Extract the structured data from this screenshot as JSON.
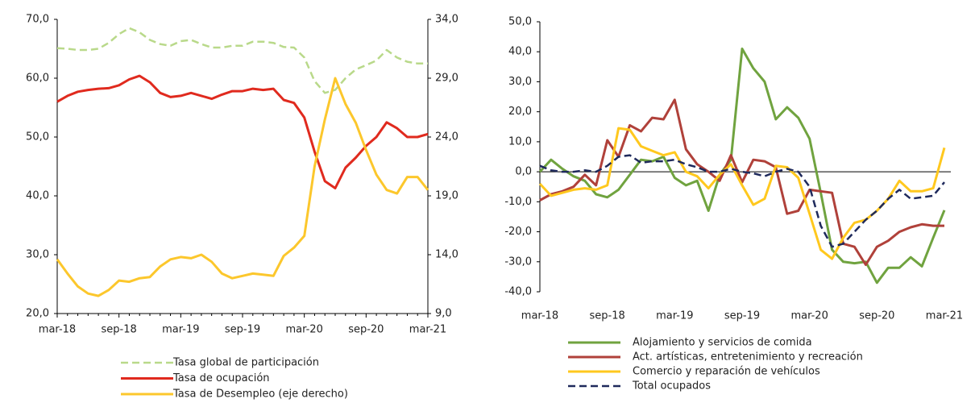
{
  "chart_data": [
    {
      "type": "line",
      "categories": [
        "mar-18",
        null,
        null,
        null,
        null,
        null,
        "sep-18",
        null,
        null,
        null,
        null,
        null,
        "mar-19",
        null,
        null,
        null,
        null,
        null,
        "sep-19",
        null,
        null,
        null,
        null,
        null,
        "mar-20",
        null,
        null,
        null,
        null,
        null,
        "sep-20",
        null,
        null,
        null,
        null,
        null,
        "mar-21"
      ],
      "ylim": [
        20,
        70
      ],
      "yticks": [
        {
          "value": 20,
          "label": "20,0"
        },
        {
          "value": 30,
          "label": "30,0"
        },
        {
          "value": 40,
          "label": "40,0"
        },
        {
          "value": 50,
          "label": "50,0"
        },
        {
          "value": 60,
          "label": "60,0"
        },
        {
          "value": 70,
          "label": "70,0"
        }
      ],
      "y2lim": [
        9,
        34
      ],
      "y2ticks": [
        {
          "value": 9,
          "label": "9,0"
        },
        {
          "value": 14,
          "label": "14,0"
        },
        {
          "value": 19,
          "label": "19,0"
        },
        {
          "value": 24,
          "label": "24,0"
        },
        {
          "value": 29,
          "label": "29,0"
        },
        {
          "value": 34,
          "label": "34,0"
        }
      ],
      "series": [
        {
          "name": "Tasa global de participación",
          "color": "#b9d98a",
          "style": "dashed",
          "values": [
            65.1,
            65.0,
            64.8,
            64.8,
            65.0,
            66.0,
            67.5,
            68.5,
            67.8,
            66.5,
            65.8,
            65.5,
            66.3,
            66.5,
            65.8,
            65.2,
            65.2,
            65.5,
            65.5,
            66.2,
            66.2,
            66.0,
            65.3,
            65.2,
            63.5,
            59.5,
            57.5,
            58.0,
            60.0,
            61.5,
            62.2,
            63.0,
            64.8,
            63.5,
            62.8,
            62.5,
            62.5
          ]
        },
        {
          "name": "Tasa de ocupación",
          "color": "#e02a1e",
          "style": "solid",
          "values": [
            56.0,
            57.0,
            57.7,
            58.0,
            58.2,
            58.3,
            58.8,
            59.8,
            60.4,
            59.3,
            57.5,
            56.8,
            57.0,
            57.5,
            57.0,
            56.5,
            57.2,
            57.8,
            57.8,
            58.2,
            58.0,
            58.2,
            56.3,
            55.8,
            53.3,
            47.5,
            42.5,
            41.3,
            44.8,
            46.5,
            48.5,
            50.0,
            52.5,
            51.5,
            50.0,
            50.0,
            50.5
          ]
        },
        {
          "name": "Tasa de Desempleo (eje derecho)",
          "color": "#fcc72c",
          "style": "solid",
          "axis": "y2",
          "values": [
            13.6,
            12.4,
            11.3,
            10.7,
            10.5,
            11.0,
            11.8,
            11.7,
            12.0,
            12.1,
            13.0,
            13.6,
            13.8,
            13.7,
            14.0,
            13.4,
            12.4,
            12.0,
            12.2,
            12.4,
            12.3,
            12.2,
            13.9,
            14.6,
            15.6,
            21.5,
            25.5,
            29.0,
            26.8,
            25.2,
            22.9,
            20.8,
            19.5,
            19.2,
            20.6,
            20.6,
            19.5
          ]
        }
      ]
    },
    {
      "type": "line",
      "categories": [
        "mar-18",
        null,
        null,
        null,
        null,
        null,
        "sep-18",
        null,
        null,
        null,
        null,
        null,
        "mar-19",
        null,
        null,
        null,
        null,
        null,
        "sep-19",
        null,
        null,
        null,
        null,
        null,
        "mar-20",
        null,
        null,
        null,
        null,
        null,
        "sep-20",
        null,
        null,
        null,
        null,
        null,
        "mar-21"
      ],
      "ylim": [
        -40,
        50
      ],
      "yticks": [
        {
          "value": -40,
          "label": "-40,0"
        },
        {
          "value": -30,
          "label": "-30,0"
        },
        {
          "value": -20,
          "label": "-20,0"
        },
        {
          "value": -10,
          "label": "-10,0"
        },
        {
          "value": 0,
          "label": "0,0"
        },
        {
          "value": 10,
          "label": "10,0"
        },
        {
          "value": 20,
          "label": "20,0"
        },
        {
          "value": 30,
          "label": "30,0"
        },
        {
          "value": 40,
          "label": "40,0"
        },
        {
          "value": 50,
          "label": "50,0"
        }
      ],
      "series": [
        {
          "name": "Alojamiento y servicios de comida",
          "color": "#70a33f",
          "style": "solid",
          "values": [
            0,
            4,
            1,
            -1.5,
            -3,
            -7.5,
            -8.5,
            -6,
            -1,
            4,
            3.5,
            5,
            -2,
            -4.5,
            -3,
            -13,
            -1,
            4,
            41,
            34.5,
            30,
            17.5,
            21.5,
            18,
            11,
            -7,
            -26,
            -30,
            -30.5,
            -30,
            -37,
            -32,
            -32,
            -28.5,
            -31.5,
            -22,
            -12.8
          ]
        },
        {
          "name": "Act. artísticas, entretenimiento y recreación",
          "color": "#b0413a",
          "style": "solid",
          "values": [
            -9.5,
            -7.5,
            -6.5,
            -5,
            -1,
            -4.5,
            10.5,
            5,
            15.5,
            13.5,
            18,
            17.5,
            24,
            7.5,
            2.5,
            0,
            -3,
            5.5,
            -3.5,
            4,
            3.5,
            1.5,
            -14,
            -13,
            -6,
            -6.5,
            -7,
            -24,
            -25,
            -31,
            -25,
            -23,
            -20,
            -18.5,
            -17.5,
            -18,
            -18
          ]
        },
        {
          "name": "Comercio y reparación de vehículos",
          "color": "#ffc81e",
          "style": "solid",
          "values": [
            -4,
            -8,
            -7,
            -6,
            -5.5,
            -6,
            -4.5,
            14.5,
            14,
            8.5,
            7,
            5.5,
            6.5,
            0,
            -1.5,
            -5.5,
            -1,
            2.5,
            -4.5,
            -11,
            -9,
            2,
            1.5,
            -2,
            -14,
            -26,
            -29,
            -22,
            -17,
            -16,
            -13,
            -9,
            -3,
            -6.5,
            -6.5,
            -5.5,
            8
          ]
        },
        {
          "name": "Total ocupados",
          "color": "#1f2a5c",
          "style": "dashed",
          "values": [
            2,
            0.5,
            0,
            0,
            0.5,
            0,
            2,
            5,
            5.5,
            3,
            3.5,
            3.5,
            4,
            2.5,
            1.5,
            0,
            0,
            1,
            0,
            -0.5,
            -1.5,
            0,
            1,
            0,
            -5,
            -18,
            -25,
            -24,
            -20,
            -16,
            -13,
            -9,
            -6,
            -9,
            -8.5,
            -8,
            -3.5
          ]
        }
      ]
    }
  ]
}
